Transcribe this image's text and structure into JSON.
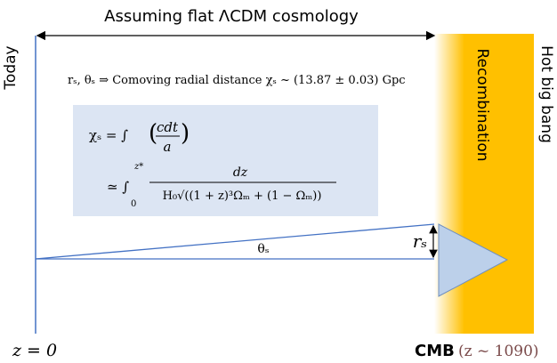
{
  "title": "Assuming flat ΛCDM cosmology",
  "left_label": "Today",
  "band_label": "Recombination",
  "right_label": "Hot big bang",
  "statement": "rₛ, θₛ ⇒ Comoving radial distance  χₛ ~ (13.87 ± 0.03) Gpc",
  "formula": {
    "line1_lhs": "χₛ = ∫",
    "line1_num": "cdt",
    "line1_den": "a",
    "line2_lhs": "≃ ∫",
    "line2_upper": "z*",
    "line2_lower": "0",
    "line2_num": "dz",
    "line2_den": "H₀√((1 + z)³Ωₘ + (1 − Ωₘ))"
  },
  "angle_label": "θₛ",
  "size_label": "rₛ",
  "today_z": "z = 0",
  "cmb_label": "CMB",
  "cmb_z": "(z ~ 1090)"
}
